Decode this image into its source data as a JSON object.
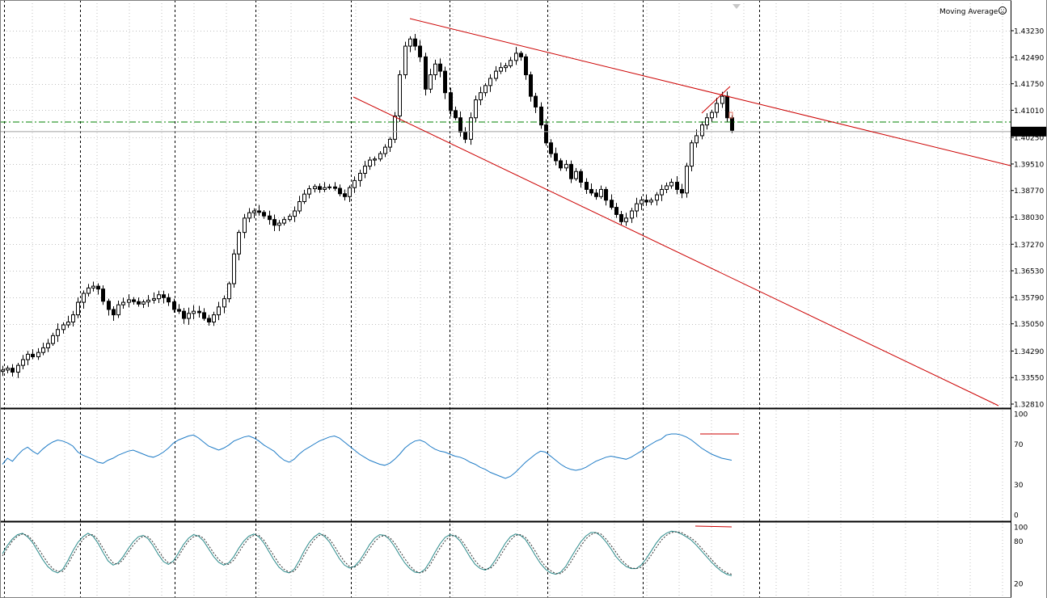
{
  "indicator_label": "Moving Average",
  "colors": {
    "background": "#ffffff",
    "grid": "#c0c0c0",
    "vline": "#000000",
    "candle": "#000000",
    "trendline": "#cc0000",
    "rsi": "#1e7bc6",
    "stoch_main": "#2a8a8a",
    "stoch_signal": "#303030",
    "level_line": "#008000",
    "price_line": "#a0a0a0"
  },
  "price_scale_labels": [
    "1.43230",
    "1.42490",
    "1.41750",
    "1.41010",
    "1.40250",
    "1.39510",
    "1.38770",
    "1.38030",
    "1.37270",
    "1.36530",
    "1.35790",
    "1.35050",
    "1.34290",
    "1.33550",
    "1.32810"
  ],
  "rsi_scale_labels": [
    "100",
    "70",
    "30",
    "0"
  ],
  "stoch_scale_labels": [
    "100",
    "80",
    "20"
  ],
  "current_price": "1.40414",
  "chart_data": [
    {
      "type": "candlestick",
      "ylim": [
        1.3245,
        1.4382
      ],
      "horizontal_level": 1.4068,
      "current_price": 1.40414,
      "closes": [
        1.3376,
        1.3381,
        1.337,
        1.3389,
        1.3405,
        1.342,
        1.3413,
        1.3425,
        1.3438,
        1.345,
        1.3472,
        1.3489,
        1.3502,
        1.351,
        1.353,
        1.3565,
        1.359,
        1.3605,
        1.361,
        1.3602,
        1.3568,
        1.3545,
        1.353,
        1.3558,
        1.3565,
        1.3572,
        1.3567,
        1.356,
        1.3566,
        1.3571,
        1.3575,
        1.3586,
        1.3578,
        1.3566,
        1.3545,
        1.354,
        1.352,
        1.3534,
        1.354,
        1.3536,
        1.352,
        1.351,
        1.353,
        1.3552,
        1.3575,
        1.3617,
        1.37,
        1.376,
        1.38,
        1.3815,
        1.382,
        1.3816,
        1.3806,
        1.3796,
        1.378,
        1.3786,
        1.3796,
        1.3805,
        1.382,
        1.3846,
        1.3867,
        1.3882,
        1.3888,
        1.388,
        1.3885,
        1.3887,
        1.3883,
        1.3868,
        1.386,
        1.3885,
        1.3905,
        1.3925,
        1.3945,
        1.3962,
        1.3965,
        1.398,
        1.3998,
        1.402,
        1.4085,
        1.42,
        1.428,
        1.43,
        1.428,
        1.425,
        1.416,
        1.42,
        1.423,
        1.421,
        1.415,
        1.41,
        1.408,
        1.404,
        1.402,
        1.408,
        1.413,
        1.415,
        1.417,
        1.419,
        1.421,
        1.422,
        1.4225,
        1.424,
        1.426,
        1.425,
        1.42,
        1.414,
        1.411,
        1.406,
        1.401,
        1.398,
        1.396,
        1.394,
        1.395,
        1.391,
        1.393,
        1.39,
        1.388,
        1.387,
        1.386,
        1.388,
        1.385,
        1.383,
        1.381,
        1.379,
        1.38,
        1.382,
        1.384,
        1.385,
        1.3845,
        1.385,
        1.3865,
        1.388,
        1.389,
        1.39,
        1.388,
        1.387,
        1.3945,
        1.401,
        1.403,
        1.406,
        1.408,
        1.4095,
        1.412,
        1.414,
        1.408,
        1.4045
      ],
      "title": "",
      "xlabel": "",
      "ylabel": ""
    },
    {
      "type": "line",
      "title": "",
      "ylim": [
        0,
        100
      ],
      "levels": [
        30,
        70
      ],
      "series": [
        {
          "values": [
            50,
            56,
            53,
            59,
            64,
            67,
            63,
            60,
            65,
            69,
            72,
            74,
            73,
            71,
            68,
            62,
            59,
            57,
            55,
            52,
            51,
            54,
            56,
            59,
            61,
            63,
            64,
            62,
            60,
            58,
            57,
            59,
            62,
            66,
            71,
            74,
            76,
            78,
            79,
            76,
            72,
            68,
            66,
            64,
            66,
            69,
            73,
            75,
            77,
            78,
            76,
            73,
            69,
            66,
            63,
            58,
            54,
            52,
            55,
            60,
            64,
            67,
            70,
            73,
            75,
            77,
            78,
            76,
            72,
            68,
            64,
            60,
            57,
            54,
            52,
            50,
            49,
            51,
            55,
            60,
            66,
            70,
            73,
            74,
            72,
            68,
            65,
            63,
            62,
            60,
            58,
            57,
            55,
            52,
            50,
            47,
            45,
            42,
            40,
            38,
            36,
            38,
            42,
            47,
            52,
            56,
            60,
            63,
            62,
            58,
            54,
            50,
            47,
            45,
            44,
            45,
            47,
            50,
            53,
            55,
            57,
            58,
            57,
            56,
            55,
            57,
            60,
            63,
            67,
            70,
            73,
            75,
            79,
            80,
            80,
            79,
            77,
            74,
            70,
            66,
            63,
            60,
            58,
            56,
            55,
            54
          ]
        }
      ]
    },
    {
      "type": "line",
      "title": "",
      "ylim": [
        0,
        100
      ],
      "levels": [
        20,
        80
      ],
      "series": [
        {
          "values": [
            62,
            74,
            83,
            89,
            91,
            86,
            78,
            66,
            54,
            44,
            38,
            35,
            40,
            52,
            66,
            78,
            86,
            91,
            87,
            77,
            64,
            52,
            46,
            49,
            58,
            69,
            79,
            86,
            88,
            83,
            73,
            61,
            51,
            47,
            52,
            63,
            75,
            84,
            89,
            87,
            80,
            69,
            58,
            50,
            46,
            49,
            58,
            70,
            80,
            87,
            90,
            86,
            77,
            65,
            53,
            43,
            37,
            35,
            40,
            52,
            66,
            78,
            86,
            91,
            87,
            79,
            67,
            55,
            46,
            42,
            44,
            52,
            63,
            75,
            84,
            89,
            88,
            82,
            72,
            60,
            49,
            41,
            36,
            35,
            40,
            51,
            64,
            76,
            85,
            89,
            87,
            80,
            69,
            57,
            47,
            41,
            39,
            43,
            53,
            65,
            77,
            86,
            90,
            88,
            82,
            71,
            59,
            48,
            40,
            35,
            33,
            36,
            44,
            56,
            68,
            79,
            87,
            92,
            92,
            87,
            79,
            69,
            58,
            50,
            44,
            41,
            41,
            46,
            55,
            66,
            77,
            86,
            91,
            94,
            93,
            90,
            86,
            81,
            74,
            66,
            58,
            50,
            43,
            37,
            33,
            31
          ]
        },
        {
          "values": [
            59,
            70,
            80,
            87,
            90,
            88,
            81,
            71,
            60,
            49,
            41,
            37,
            37,
            47,
            60,
            72,
            82,
            88,
            89,
            82,
            70,
            58,
            49,
            47,
            54,
            64,
            74,
            82,
            87,
            86,
            78,
            67,
            56,
            49,
            49,
            58,
            70,
            80,
            86,
            88,
            84,
            74,
            63,
            54,
            48,
            47,
            53,
            64,
            75,
            84,
            88,
            88,
            81,
            70,
            59,
            48,
            40,
            36,
            37,
            46,
            60,
            72,
            82,
            88,
            89,
            83,
            73,
            61,
            51,
            44,
            43,
            48,
            58,
            69,
            79,
            86,
            88,
            85,
            77,
            66,
            55,
            45,
            38,
            35,
            37,
            46,
            58,
            70,
            80,
            87,
            88,
            84,
            74,
            63,
            52,
            44,
            40,
            41,
            48,
            59,
            71,
            81,
            88,
            89,
            85,
            76,
            65,
            53,
            44,
            38,
            34,
            34,
            40,
            50,
            62,
            73,
            83,
            89,
            92,
            90,
            83,
            74,
            64,
            54,
            47,
            42,
            41,
            43,
            50,
            60,
            71,
            81,
            88,
            92,
            93,
            92,
            88,
            84,
            78,
            70,
            62,
            54,
            46,
            40,
            35,
            33
          ]
        }
      ]
    }
  ]
}
